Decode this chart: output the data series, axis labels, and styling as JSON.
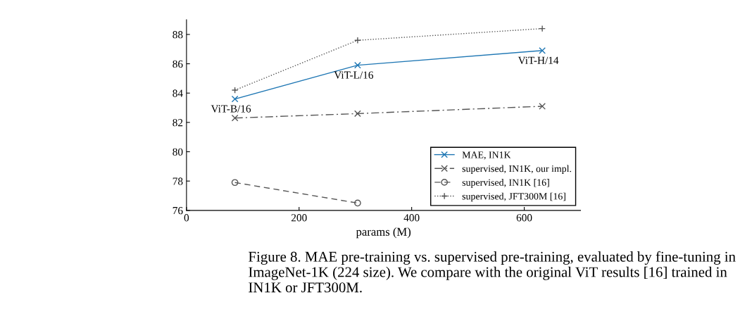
{
  "chart_data": {
    "type": "line",
    "xlabel": "params (M)",
    "x": [
      86,
      304,
      632
    ],
    "series": [
      {
        "name": "MAE, IN1K",
        "color": "#1f77b4",
        "values": [
          83.6,
          85.9,
          86.9
        ],
        "marker": "cross",
        "line_style": "solid"
      },
      {
        "name": "supervised, IN1K, our impl.",
        "color": "#555555",
        "values": [
          82.3,
          82.6,
          83.1
        ],
        "marker": "cross",
        "line_style": "dashdot"
      },
      {
        "name": "supervised, IN1K [16]",
        "color": "#555555",
        "values": [
          77.9,
          76.5,
          null
        ],
        "marker": "circle",
        "line_style": "dashed"
      },
      {
        "name": "supervised, JFT300M [16]",
        "color": "#555555",
        "values": [
          84.2,
          87.6,
          88.4
        ],
        "marker": "plus",
        "line_style": "dotted"
      }
    ],
    "annotations": [
      {
        "text": "ViT-B/16",
        "x": 86,
        "y": 83.6
      },
      {
        "text": "ViT-L/16",
        "x": 304,
        "y": 85.9
      },
      {
        "text": "ViT-H/14",
        "x": 632,
        "y": 86.9
      },
      "Figure 8. MAE pre-training vs. supervised pre-training, evaluated by fine-tuning in ImageNet-1K (224 size). We compare with the original ViT results [16] trained in IN1K or JFT300M."
    ],
    "xlim": [
      0,
      700
    ],
    "ylim": [
      76,
      89
    ],
    "xticks": [
      0,
      200,
      400,
      600
    ],
    "yticks": [
      76,
      78,
      80,
      82,
      84,
      86,
      88
    ],
    "grid": false,
    "legend": "bottom right"
  }
}
